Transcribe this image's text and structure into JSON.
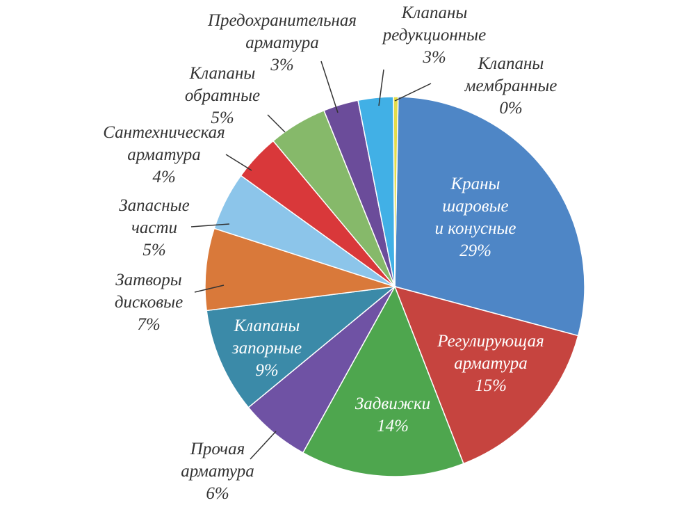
{
  "chart_data": {
    "type": "pie",
    "title": "",
    "slices": [
      {
        "lines": [
          "Краны",
          "шаровые",
          "и конусные",
          "29%"
        ],
        "value": 29,
        "color": "#4e86c6",
        "label_position": "inside"
      },
      {
        "lines": [
          "Регулирующая",
          "арматура",
          "15%"
        ],
        "value": 15,
        "color": "#c6443f",
        "label_position": "inside"
      },
      {
        "lines": [
          "Задвижки",
          "14%"
        ],
        "value": 14,
        "color": "#4ea64e",
        "label_position": "inside"
      },
      {
        "lines": [
          "Прочая",
          "арматура",
          "6%"
        ],
        "value": 6,
        "color": "#6f52a4",
        "label_position": "outside"
      },
      {
        "lines": [
          "Клапаны",
          "запорные",
          "9%"
        ],
        "value": 9,
        "color": "#3b8aa8",
        "label_position": "inside"
      },
      {
        "lines": [
          "Затворы",
          "дисковые",
          "7%"
        ],
        "value": 7,
        "color": "#d9793a",
        "label_position": "outside"
      },
      {
        "lines": [
          "Запасные",
          "части",
          "5%"
        ],
        "value": 5,
        "color": "#8cc5ea",
        "label_position": "outside"
      },
      {
        "lines": [
          "Сантехническая",
          "арматура",
          "4%"
        ],
        "value": 4,
        "color": "#d9383a",
        "label_position": "outside"
      },
      {
        "lines": [
          "Клапаны",
          "обратные",
          "5%"
        ],
        "value": 5,
        "color": "#86b96a",
        "label_position": "outside"
      },
      {
        "lines": [
          "Предохранительная",
          "арматура",
          "3%"
        ],
        "value": 3,
        "color": "#6b4c9a",
        "label_position": "outside"
      },
      {
        "lines": [
          "Клапаны",
          "редукционные",
          "3%"
        ],
        "value": 3,
        "color": "#41b0e6",
        "label_position": "outside"
      },
      {
        "lines": [
          "Клапаны",
          "мембранные",
          "0%"
        ],
        "value": 0.4,
        "color": "#e4dc4a",
        "label_position": "outside"
      }
    ],
    "legend": "none"
  }
}
